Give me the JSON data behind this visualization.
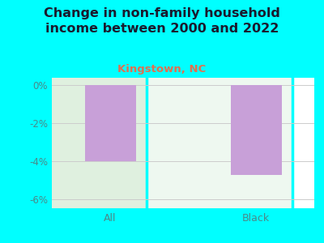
{
  "title": "Change in non-family household\nincome between 2000 and 2022",
  "subtitle": "Kingstown, NC",
  "categories": [
    "All",
    "Black"
  ],
  "values": [
    -4.0,
    -4.7
  ],
  "bar_color": "#c8a0d8",
  "background_color": "#00FFFF",
  "plot_bg_left": "#dff0df",
  "plot_bg_right": "#eef8f0",
  "title_fontsize": 11.5,
  "subtitle_fontsize": 9.5,
  "subtitle_color": "#e07050",
  "tick_label_color": "#4a8a8a",
  "ylim": [
    -6.5,
    0.4
  ],
  "yticks": [
    0,
    -2,
    -4,
    -6
  ],
  "ytick_labels": [
    "0%",
    "-2%",
    "-4%",
    "-6%"
  ],
  "grid_color": "#cccccc",
  "title_color": "#1a1a2e"
}
